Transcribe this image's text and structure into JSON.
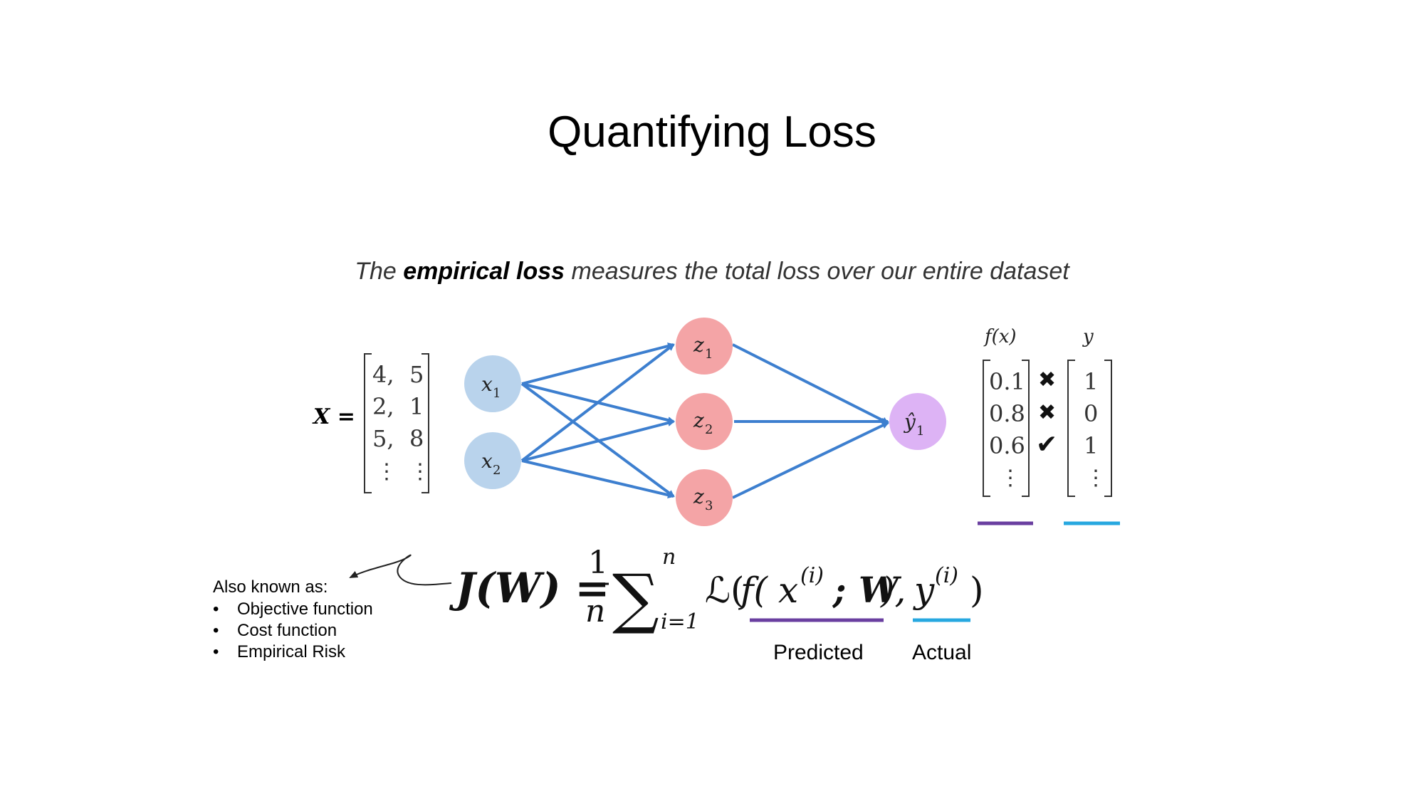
{
  "title": "Quantifying Loss",
  "subtitle": {
    "before": "The ",
    "emphasis": "empirical loss",
    "after": " measures the total loss over our entire dataset"
  },
  "input_matrix": {
    "label": "X =",
    "rows": [
      [
        "4,",
        "5"
      ],
      [
        "2,",
        "1"
      ],
      [
        "5,",
        "8"
      ]
    ],
    "ellipsis": "⋮"
  },
  "network": {
    "inputs": [
      "x",
      "x"
    ],
    "input_subscripts": [
      "1",
      "2"
    ],
    "hidden": [
      "z",
      "z",
      "z"
    ],
    "hidden_subscripts": [
      "1",
      "2",
      "3"
    ],
    "output": "ŷ",
    "output_subscript": "1",
    "colors": {
      "input": "#b9d3ec",
      "hidden": "#f4a4a6",
      "output": "#ddb3f5",
      "edge": "#3d7fcf"
    }
  },
  "outputs_table": {
    "fx_header": "f(x)",
    "y_header": "y",
    "predicted": [
      "0.1",
      "0.8",
      "0.6",
      "⋮"
    ],
    "marks": [
      "✖",
      "✖",
      "✔"
    ],
    "actual": [
      "1",
      "0",
      "1",
      "⋮"
    ],
    "colors": {
      "predicted": "#6a3fa0",
      "actual": "#27a8e0"
    }
  },
  "formula": {
    "lhs": "J(W) =",
    "frac_num": "1",
    "frac_den": "n",
    "sum": "∑",
    "sum_upper": "n",
    "sum_lower": "i=1",
    "body_open": "ℒ(",
    "f_open": "f(",
    "x_term": "x",
    "x_sup": "(i)",
    "semicolon_w": "; W",
    "f_close": "),",
    "y_term": "y",
    "y_sup": "(i)",
    "body_close": ")"
  },
  "labels": {
    "predicted": "Predicted",
    "actual": "Actual"
  },
  "also_known": {
    "heading": "Also known as:",
    "bullet": "•",
    "items": [
      "Objective function",
      "Cost function",
      "Empirical Risk"
    ]
  }
}
